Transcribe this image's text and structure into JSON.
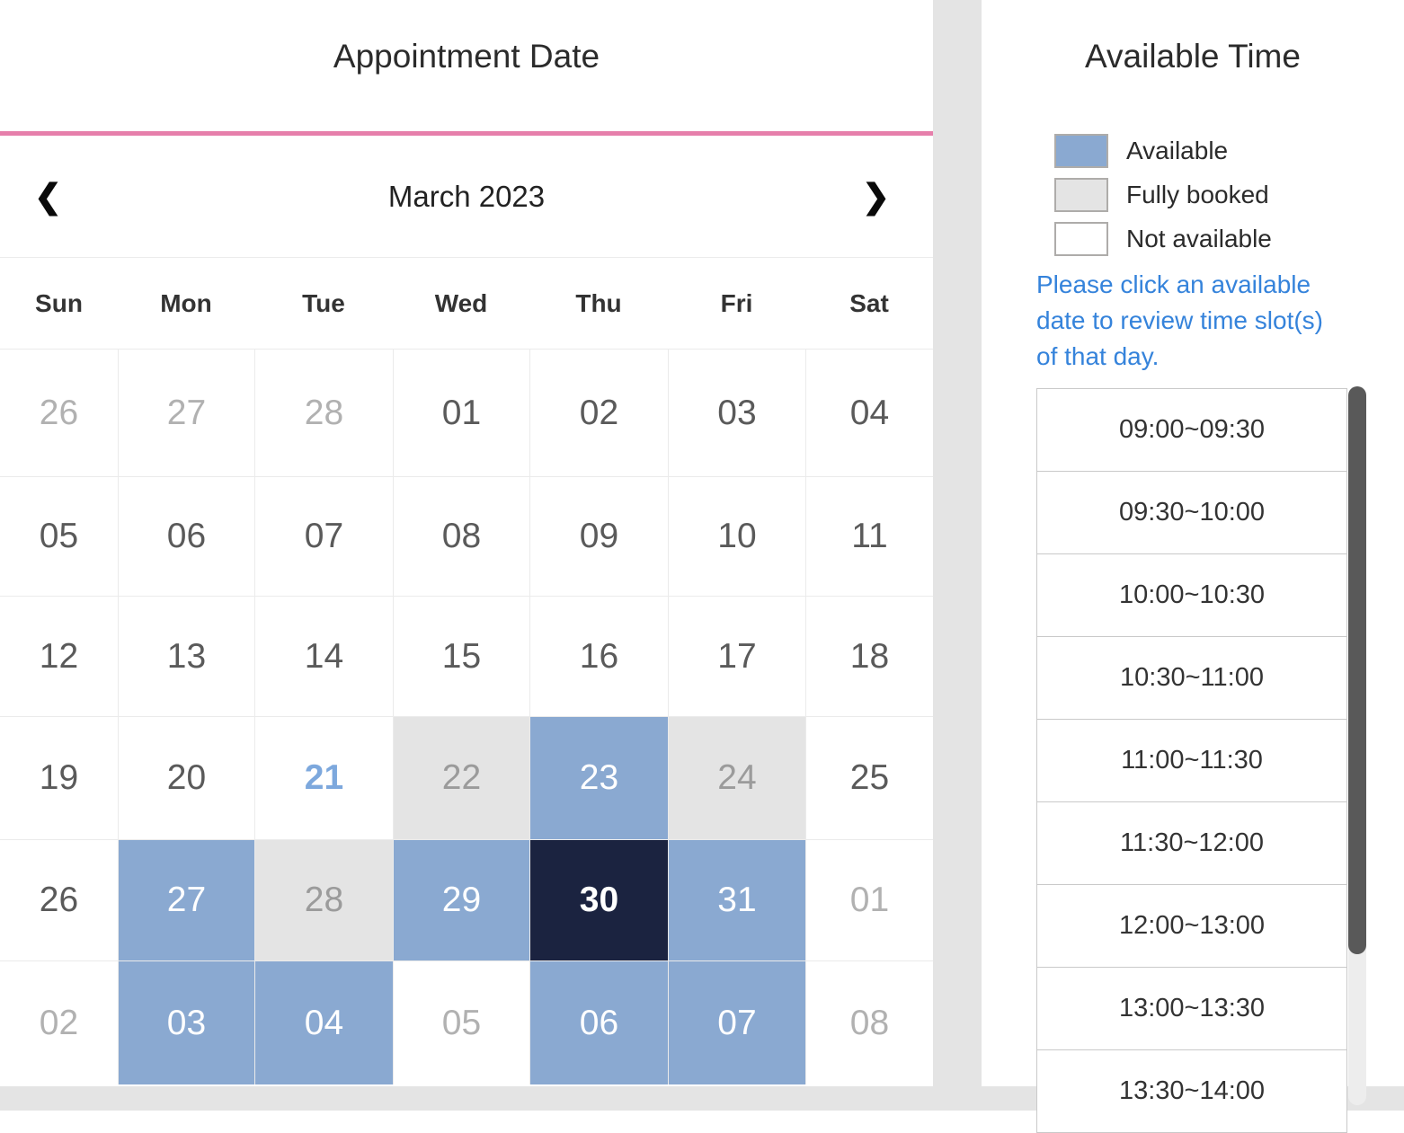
{
  "appointment": {
    "title": "Appointment Date"
  },
  "calendar": {
    "month_label": "March 2023",
    "prev_icon": "❮",
    "next_icon": "❯",
    "weekdays": [
      "Sun",
      "Mon",
      "Tue",
      "Wed",
      "Thu",
      "Fri",
      "Sat"
    ],
    "weeks": [
      [
        {
          "day": "26",
          "state": "other"
        },
        {
          "day": "27",
          "state": "other"
        },
        {
          "day": "28",
          "state": "other"
        },
        {
          "day": "01",
          "state": "normal"
        },
        {
          "day": "02",
          "state": "normal"
        },
        {
          "day": "03",
          "state": "normal"
        },
        {
          "day": "04",
          "state": "normal"
        }
      ],
      [
        {
          "day": "05",
          "state": "normal"
        },
        {
          "day": "06",
          "state": "normal"
        },
        {
          "day": "07",
          "state": "normal"
        },
        {
          "day": "08",
          "state": "normal"
        },
        {
          "day": "09",
          "state": "normal"
        },
        {
          "day": "10",
          "state": "normal"
        },
        {
          "day": "11",
          "state": "normal"
        }
      ],
      [
        {
          "day": "12",
          "state": "normal"
        },
        {
          "day": "13",
          "state": "normal"
        },
        {
          "day": "14",
          "state": "normal"
        },
        {
          "day": "15",
          "state": "normal"
        },
        {
          "day": "16",
          "state": "normal"
        },
        {
          "day": "17",
          "state": "normal"
        },
        {
          "day": "18",
          "state": "normal"
        }
      ],
      [
        {
          "day": "19",
          "state": "normal"
        },
        {
          "day": "20",
          "state": "normal"
        },
        {
          "day": "21",
          "state": "today"
        },
        {
          "day": "22",
          "state": "booked"
        },
        {
          "day": "23",
          "state": "available"
        },
        {
          "day": "24",
          "state": "booked"
        },
        {
          "day": "25",
          "state": "normal"
        }
      ],
      [
        {
          "day": "26",
          "state": "normal"
        },
        {
          "day": "27",
          "state": "available"
        },
        {
          "day": "28",
          "state": "booked"
        },
        {
          "day": "29",
          "state": "available"
        },
        {
          "day": "30",
          "state": "selected"
        },
        {
          "day": "31",
          "state": "available"
        },
        {
          "day": "01",
          "state": "other"
        }
      ],
      [
        {
          "day": "02",
          "state": "other"
        },
        {
          "day": "03",
          "state": "available"
        },
        {
          "day": "04",
          "state": "available"
        },
        {
          "day": "05",
          "state": "other"
        },
        {
          "day": "06",
          "state": "available"
        },
        {
          "day": "07",
          "state": "available"
        },
        {
          "day": "08",
          "state": "other"
        }
      ]
    ]
  },
  "right_panel": {
    "title": "Available Time",
    "legend": [
      {
        "label": "Available",
        "type": "available"
      },
      {
        "label": "Fully booked",
        "type": "booked"
      },
      {
        "label": "Not available",
        "type": "none"
      }
    ],
    "instruction": "Please click an available date to review time slot(s) of that day.",
    "time_slots": [
      "09:00~09:30",
      "09:30~10:00",
      "10:00~10:30",
      "10:30~11:00",
      "11:00~11:30",
      "11:30~12:00",
      "12:00~13:00",
      "13:00~13:30",
      "13:30~14:00"
    ]
  },
  "colors": {
    "accent_pink": "#e67fab",
    "available_blue": "#8aa9d1",
    "booked_gray": "#e4e4e4",
    "selected_navy": "#1b2340",
    "today_blue": "#7da8dd",
    "link_blue": "#3583db"
  }
}
